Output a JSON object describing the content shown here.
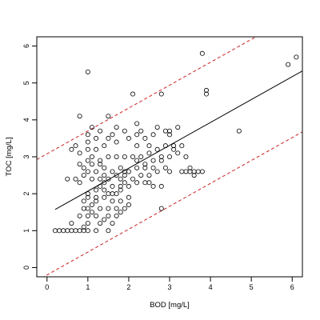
{
  "chart_data": {
    "type": "scatter",
    "xlabel": "BOD [mg/L]",
    "ylabel": "TOC [mg/L]",
    "xlim": [
      -0.25,
      6.25
    ],
    "ylim": [
      -0.25,
      6.25
    ],
    "x_ticks": [
      0,
      1,
      2,
      3,
      4,
      5,
      6
    ],
    "y_ticks": [
      0,
      1,
      2,
      3,
      4,
      5,
      6
    ],
    "grid": false,
    "legend": "none",
    "colors": {
      "points": "#000000",
      "fit_line": "#000000",
      "prediction_band": "#cc2222"
    },
    "fit_line": {
      "intercept": 1.45,
      "slope": 0.62
    },
    "prediction_band": {
      "upper_intercept": 3.08,
      "lower_intercept": -0.2,
      "slope": 0.62
    },
    "points": [
      [
        0.2,
        1.0
      ],
      [
        0.3,
        1.0
      ],
      [
        0.4,
        1.0
      ],
      [
        0.5,
        1.0
      ],
      [
        0.6,
        1.0
      ],
      [
        0.7,
        1.0
      ],
      [
        0.8,
        1.0
      ],
      [
        0.9,
        1.0
      ],
      [
        1.0,
        1.0
      ],
      [
        1.2,
        1.0
      ],
      [
        0.6,
        1.2
      ],
      [
        0.9,
        1.1
      ],
      [
        1.0,
        1.2
      ],
      [
        1.3,
        1.2
      ],
      [
        1.0,
        1.4
      ],
      [
        1.2,
        1.4
      ],
      [
        1.4,
        1.3
      ],
      [
        1.5,
        1.4
      ],
      [
        1.7,
        1.4
      ],
      [
        1.6,
        1.2
      ],
      [
        0.8,
        1.4
      ],
      [
        0.9,
        1.6
      ],
      [
        1.0,
        1.6
      ],
      [
        1.1,
        1.5
      ],
      [
        1.3,
        1.6
      ],
      [
        1.5,
        1.6
      ],
      [
        1.7,
        1.6
      ],
      [
        1.9,
        1.6
      ],
      [
        2.0,
        1.7
      ],
      [
        1.8,
        1.5
      ],
      [
        0.9,
        1.8
      ],
      [
        1.1,
        1.7
      ],
      [
        1.2,
        1.8
      ],
      [
        1.4,
        1.9
      ],
      [
        1.6,
        1.8
      ],
      [
        1.8,
        1.8
      ],
      [
        2.0,
        1.9
      ],
      [
        1.0,
        1.9
      ],
      [
        1.5,
        2.0
      ],
      [
        1.7,
        2.0
      ],
      [
        1.0,
        2.0
      ],
      [
        1.2,
        2.1
      ],
      [
        1.3,
        2.2
      ],
      [
        1.4,
        2.3
      ],
      [
        1.6,
        2.2
      ],
      [
        1.8,
        2.1
      ],
      [
        1.9,
        2.3
      ],
      [
        2.0,
        2.2
      ],
      [
        2.2,
        2.3
      ],
      [
        2.4,
        2.3
      ],
      [
        2.5,
        2.3
      ],
      [
        2.6,
        2.2
      ],
      [
        2.8,
        2.2
      ],
      [
        0.8,
        2.3
      ],
      [
        1.1,
        2.4
      ],
      [
        1.3,
        2.4
      ],
      [
        1.5,
        2.4
      ],
      [
        1.7,
        2.5
      ],
      [
        1.9,
        2.5
      ],
      [
        2.1,
        2.4
      ],
      [
        2.3,
        2.5
      ],
      [
        2.5,
        2.5
      ],
      [
        2.7,
        2.6
      ],
      [
        2.9,
        2.7
      ],
      [
        3.0,
        2.6
      ],
      [
        3.3,
        2.6
      ],
      [
        3.4,
        2.6
      ],
      [
        3.5,
        2.6
      ],
      [
        3.6,
        2.6
      ],
      [
        3.7,
        2.6
      ],
      [
        3.8,
        2.6
      ],
      [
        3.5,
        2.7
      ],
      [
        3.6,
        2.5
      ],
      [
        0.7,
        2.4
      ],
      [
        0.9,
        2.5
      ],
      [
        1.0,
        2.6
      ],
      [
        1.2,
        2.6
      ],
      [
        1.4,
        2.7
      ],
      [
        1.6,
        2.6
      ],
      [
        1.8,
        2.7
      ],
      [
        2.0,
        2.6
      ],
      [
        2.2,
        2.7
      ],
      [
        2.4,
        2.8
      ],
      [
        2.6,
        2.9
      ],
      [
        2.8,
        3.0
      ],
      [
        3.0,
        3.0
      ],
      [
        3.2,
        3.1
      ],
      [
        0.8,
        2.8
      ],
      [
        1.0,
        2.9
      ],
      [
        1.1,
        2.8
      ],
      [
        1.3,
        2.9
      ],
      [
        1.5,
        3.0
      ],
      [
        1.7,
        3.0
      ],
      [
        1.9,
        3.0
      ],
      [
        2.1,
        3.0
      ],
      [
        2.3,
        3.0
      ],
      [
        2.5,
        3.1
      ],
      [
        2.7,
        3.2
      ],
      [
        2.9,
        3.3
      ],
      [
        3.1,
        3.3
      ],
      [
        0.6,
        3.2
      ],
      [
        0.8,
        3.1
      ],
      [
        1.0,
        3.2
      ],
      [
        1.2,
        3.2
      ],
      [
        1.4,
        3.3
      ],
      [
        1.7,
        3.4
      ],
      [
        2.0,
        3.5
      ],
      [
        2.2,
        3.6
      ],
      [
        2.4,
        3.5
      ],
      [
        2.6,
        3.6
      ],
      [
        2.9,
        3.7
      ],
      [
        3.0,
        3.6
      ],
      [
        3.2,
        3.8
      ],
      [
        1.0,
        3.6
      ],
      [
        1.3,
        3.7
      ],
      [
        1.6,
        3.6
      ],
      [
        1.9,
        3.7
      ],
      [
        2.3,
        3.7
      ],
      [
        2.7,
        3.8
      ],
      [
        3.0,
        3.7
      ],
      [
        0.8,
        4.1
      ],
      [
        1.1,
        3.8
      ],
      [
        1.5,
        4.1
      ],
      [
        1.7,
        3.8
      ],
      [
        2.2,
        3.9
      ],
      [
        0.7,
        3.3
      ],
      [
        1.2,
        3.5
      ],
      [
        1.5,
        3.5
      ],
      [
        0.9,
        2.7
      ],
      [
        1.4,
        2.5
      ],
      [
        1.8,
        2.4
      ],
      [
        2.6,
        2.7
      ],
      [
        2.8,
        2.9
      ],
      [
        3.1,
        3.2
      ],
      [
        3.3,
        3.3
      ],
      [
        1.0,
        3.4
      ],
      [
        1.1,
        3.0
      ],
      [
        1.3,
        2.8
      ],
      [
        1.9,
        2.6
      ],
      [
        2.2,
        2.9
      ],
      [
        2.4,
        2.7
      ],
      [
        1.4,
        2.1
      ],
      [
        1.6,
        2.0
      ],
      [
        1.8,
        2.2
      ],
      [
        1.2,
        1.9
      ],
      [
        0.5,
        2.4
      ],
      [
        2.1,
        4.7
      ],
      [
        2.8,
        4.7
      ],
      [
        1.0,
        5.3
      ],
      [
        3.8,
        5.8
      ],
      [
        3.9,
        4.7
      ],
      [
        3.9,
        4.8
      ],
      [
        4.7,
        3.7
      ],
      [
        5.9,
        5.5
      ],
      [
        6.1,
        5.7
      ],
      [
        2.8,
        1.6
      ],
      [
        3.4,
        3.0
      ],
      [
        2.2,
        3.3
      ],
      [
        2.5,
        3.3
      ],
      [
        1.5,
        1.0
      ]
    ]
  }
}
